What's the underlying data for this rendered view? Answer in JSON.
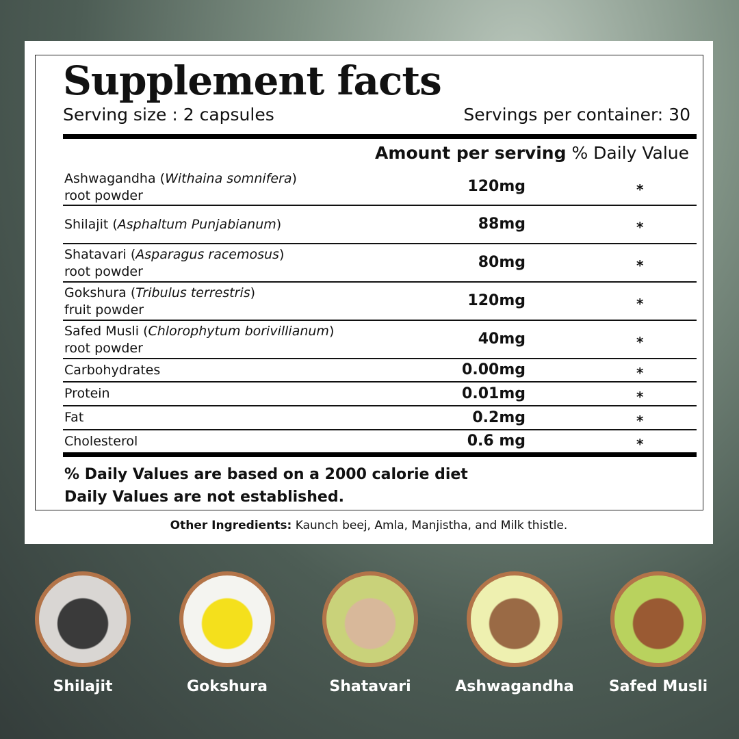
{
  "title": "Supplement facts",
  "serving_size": "Serving size : 2 capsules",
  "servings_per_container": "Servings per container: 30",
  "header": {
    "amount": "Amount per serving",
    "dv": "% Daily Value"
  },
  "rows": [
    {
      "name": "Ashwagandha (",
      "latin": "Withaina somnifera",
      "close": ")",
      "sub": "root powder",
      "amount": "120mg",
      "dv": "*"
    },
    {
      "name": "Shilajit (",
      "latin": "Asphaltum Punjabianum",
      "close": ")",
      "sub": "",
      "amount": "88mg",
      "dv": "*"
    },
    {
      "name": "Shatavari (",
      "latin": "Asparagus racemosus",
      "close": ")",
      "sub": "root powder",
      "amount": "80mg",
      "dv": "*"
    },
    {
      "name": "Gokshura (",
      "latin": "Tribulus terrestris",
      "close": ")",
      "sub": "fruit powder",
      "amount": "120mg",
      "dv": "*"
    },
    {
      "name": "Safed Musli (",
      "latin": "Chlorophytum borivillianum",
      "close": ")",
      "sub": "root powder",
      "amount": "40mg",
      "dv": "*"
    },
    {
      "name": "Carbohydrates",
      "latin": "",
      "close": "",
      "sub": "",
      "amount": "0.00mg",
      "dv": "*"
    },
    {
      "name": "Protein",
      "latin": "",
      "close": "",
      "sub": "",
      "amount": "0.01mg",
      "dv": "*"
    },
    {
      "name": "Fat",
      "latin": "",
      "close": "",
      "sub": "",
      "amount": "0.2mg",
      "dv": "*"
    },
    {
      "name": "Cholesterol",
      "latin": "",
      "close": "",
      "sub": "",
      "amount": "0.6 mg",
      "dv": "*"
    }
  ],
  "footnote1": "% Daily Values are based on a 2000 calorie diet",
  "footnote2": "Daily Values are not established.",
  "other_label": "Other Ingredients:",
  "other_text": " Kaunch beej, Amla, Manjistha, and Milk thistle.",
  "herbs": [
    {
      "label": "Shilajit",
      "color": "#3a3a3a",
      "bg": "#d9d6d3"
    },
    {
      "label": "Gokshura",
      "color": "#f4e01c",
      "bg": "#f4f4f0"
    },
    {
      "label": "Shatavari",
      "color": "#d8b89a",
      "bg": "#c9d27a"
    },
    {
      "label": "Ashwagandha",
      "color": "#9a6a45",
      "bg": "#eef0b0"
    },
    {
      "label": "Safed Musli",
      "color": "#9a5a33",
      "bg": "#b9d25e"
    }
  ]
}
